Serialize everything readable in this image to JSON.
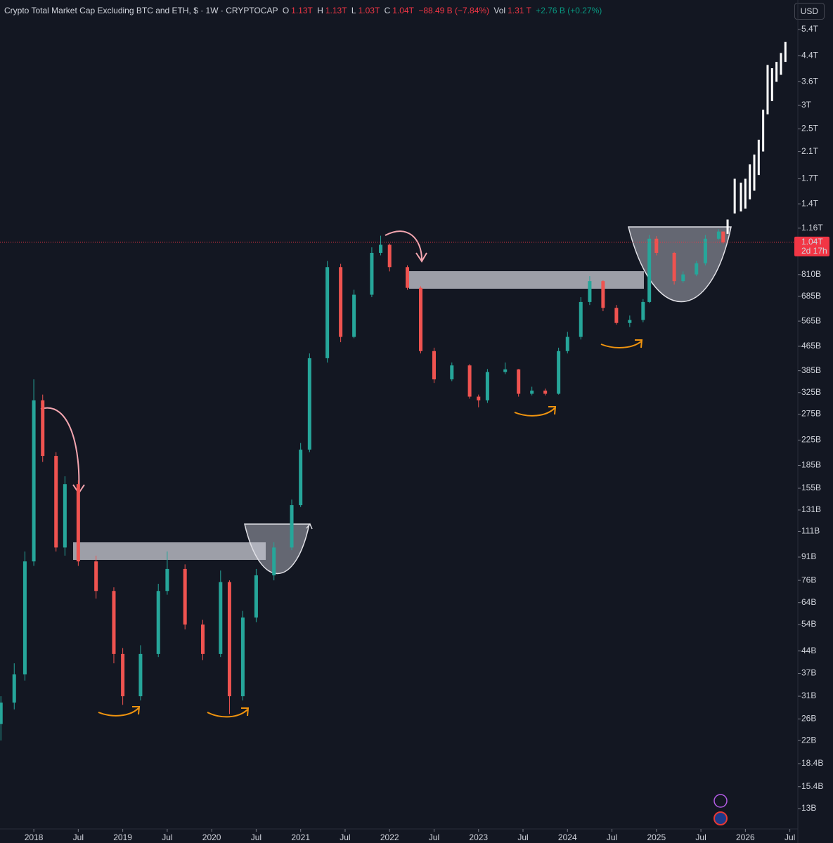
{
  "chart_data": {
    "type": "candlestick",
    "title": "Crypto Total Market Cap Excluding BTC and ETH, $ · 1W · CRYPTOCAP",
    "ohlc": [
      {
        "label": "O",
        "value": "1.13T"
      },
      {
        "label": "H",
        "value": "1.13T"
      },
      {
        "label": "L",
        "value": "1.03T"
      },
      {
        "label": "C",
        "value": "1.04T"
      }
    ],
    "change": "−88.49 B (−7.84%)",
    "volume": {
      "label": "Vol",
      "value": "1.31 T",
      "change": "+2.76 B (+0.27%)"
    },
    "currency": "USD",
    "last_price": {
      "value": 1040,
      "label": "1.04T"
    },
    "countdown": "2d 17h",
    "log": true,
    "up_color": "#26a69a",
    "down_color": "#ef5350",
    "projection_color": "#ffffff",
    "x": [
      2017.63,
      2017.78,
      2017.9,
      2018.0,
      2018.1,
      2018.25,
      2018.35,
      2018.5,
      2018.7,
      2018.9,
      2019.0,
      2019.2,
      2019.4,
      2019.5,
      2019.7,
      2019.9,
      2020.1,
      2020.2,
      2020.35,
      2020.5,
      2020.7,
      2020.9,
      2021.0,
      2021.1,
      2021.3,
      2021.45,
      2021.6,
      2021.8,
      2021.9,
      2022.0,
      2022.2,
      2022.35,
      2022.5,
      2022.7,
      2022.9,
      2023.0,
      2023.1,
      2023.3,
      2023.45,
      2023.6,
      2023.75,
      2023.9,
      2024.0,
      2024.15,
      2024.25,
      2024.4,
      2024.55,
      2024.7,
      2024.85,
      2024.92,
      2025.0,
      2025.2,
      2025.3,
      2025.45,
      2025.55,
      2025.7,
      2025.75
    ],
    "open": [
      25,
      29.5,
      36.7,
      88,
      306,
      199,
      98,
      160,
      88,
      70,
      43,
      31,
      43,
      70,
      83,
      54,
      43,
      75,
      31,
      57,
      79,
      98,
      136,
      209,
      424,
      858,
      500,
      693,
      958,
      1020,
      858,
      731,
      448,
      360,
      401,
      315,
      306,
      381,
      389,
      322,
      330,
      322,
      448,
      500,
      655,
      770,
      626,
      557,
      570,
      655,
      1069,
      958,
      770,
      811,
      884,
      1069,
      1130
    ],
    "high": [
      31,
      40,
      95,
      360,
      320,
      205,
      170,
      165,
      92,
      72,
      45,
      46,
      74,
      95,
      86,
      56,
      82,
      76,
      60,
      83,
      102,
      142,
      220,
      440,
      900,
      880,
      720,
      1000,
      1094,
      1030,
      870,
      740,
      460,
      410,
      405,
      320,
      390,
      410,
      390,
      340,
      335,
      460,
      520,
      680,
      800,
      775,
      640,
      590,
      670,
      1100,
      1090,
      965,
      830,
      900,
      1100,
      1150,
      1130
    ],
    "low": [
      22,
      28,
      35,
      85,
      190,
      95,
      92,
      85,
      66,
      40,
      29,
      30,
      42,
      68,
      52,
      41,
      42,
      27,
      30,
      55,
      76,
      96,
      134,
      205,
      410,
      480,
      495,
      680,
      940,
      830,
      720,
      440,
      350,
      355,
      310,
      290,
      300,
      375,
      315,
      318,
      318,
      320,
      440,
      490,
      640,
      610,
      550,
      540,
      560,
      650,
      940,
      750,
      760,
      800,
      870,
      1060,
      1030
    ],
    "close": [
      29.5,
      36.7,
      88,
      306,
      199,
      98,
      160,
      88,
      70,
      43,
      31,
      43,
      70,
      83,
      54,
      43,
      75,
      31,
      57,
      79,
      98,
      136,
      209,
      424,
      858,
      500,
      693,
      958,
      1020,
      858,
      731,
      448,
      360,
      401,
      315,
      306,
      381,
      389,
      322,
      330,
      322,
      448,
      500,
      655,
      770,
      626,
      557,
      570,
      655,
      1069,
      958,
      770,
      811,
      884,
      1069,
      1130,
      1040
    ],
    "projection": {
      "x": [
        2025.8,
        2025.88,
        2025.95,
        2026.0,
        2026.05,
        2026.1,
        2026.15,
        2026.2,
        2026.25,
        2026.3,
        2026.35,
        2026.4,
        2026.45
      ],
      "low": [
        1110,
        1300,
        1320,
        1350,
        1450,
        1550,
        1750,
        2100,
        2800,
        3100,
        3600,
        3800,
        4200
      ],
      "high": [
        1240,
        1700,
        1650,
        1700,
        1900,
        2050,
        2300,
        2900,
        4100,
        4000,
        4200,
        4500,
        4900
      ]
    },
    "xlim": [
      2017.62,
      2026.59
    ],
    "ylim": [
      11.1,
      6780
    ],
    "xticks": [
      2018,
      {
        "value": 2018.5,
        "label": "Jul"
      },
      2019,
      {
        "value": 2019.5,
        "label": "Jul"
      },
      2020,
      {
        "value": 2020.5,
        "label": "Jul"
      },
      2021,
      {
        "value": 2021.5,
        "label": "Jul"
      },
      2022,
      {
        "value": 2022.5,
        "label": "Jul"
      },
      2023,
      {
        "value": 2023.5,
        "label": "Jul"
      },
      2024,
      {
        "value": 2024.5,
        "label": "Jul"
      },
      2025,
      {
        "value": 2025.5,
        "label": "Jul"
      },
      2026,
      {
        "value": 2026.5,
        "label": "Jul"
      }
    ],
    "yticks": [
      {
        "value": 5400,
        "label": "5.4T"
      },
      {
        "value": 4400,
        "label": "4.4T"
      },
      {
        "value": 3600,
        "label": "3.6T"
      },
      {
        "value": 3000,
        "label": "3T"
      },
      {
        "value": 2500,
        "label": "2.5T"
      },
      {
        "value": 2100,
        "label": "2.1T"
      },
      {
        "value": 1700,
        "label": "1.7T"
      },
      {
        "value": 1400,
        "label": "1.4T"
      },
      {
        "value": 1160,
        "label": "1.16T"
      },
      {
        "value": 810,
        "label": "810B"
      },
      {
        "value": 685,
        "label": "685B"
      },
      {
        "value": 565,
        "label": "565B"
      },
      {
        "value": 465,
        "label": "465B"
      },
      {
        "value": 385,
        "label": "385B"
      },
      {
        "value": 325,
        "label": "325B"
      },
      {
        "value": 275,
        "label": "275B"
      },
      {
        "value": 225,
        "label": "225B"
      },
      {
        "value": 185,
        "label": "185B"
      },
      {
        "value": 155,
        "label": "155B"
      },
      {
        "value": 131,
        "label": "131B"
      },
      {
        "value": 111,
        "label": "111B"
      },
      {
        "value": 91,
        "label": "91B"
      },
      {
        "value": 76,
        "label": "76B"
      },
      {
        "value": 64,
        "label": "64B"
      },
      {
        "value": 54,
        "label": "54B"
      },
      {
        "value": 44,
        "label": "44B"
      },
      {
        "value": 37,
        "label": "37B"
      },
      {
        "value": 31,
        "label": "31B"
      },
      {
        "value": 26,
        "label": "26B"
      },
      {
        "value": 22,
        "label": "22B"
      },
      {
        "value": 18.4,
        "label": "18.4B"
      },
      {
        "value": 15.4,
        "label": "15.4B"
      },
      {
        "value": 13,
        "label": "13B"
      }
    ]
  }
}
